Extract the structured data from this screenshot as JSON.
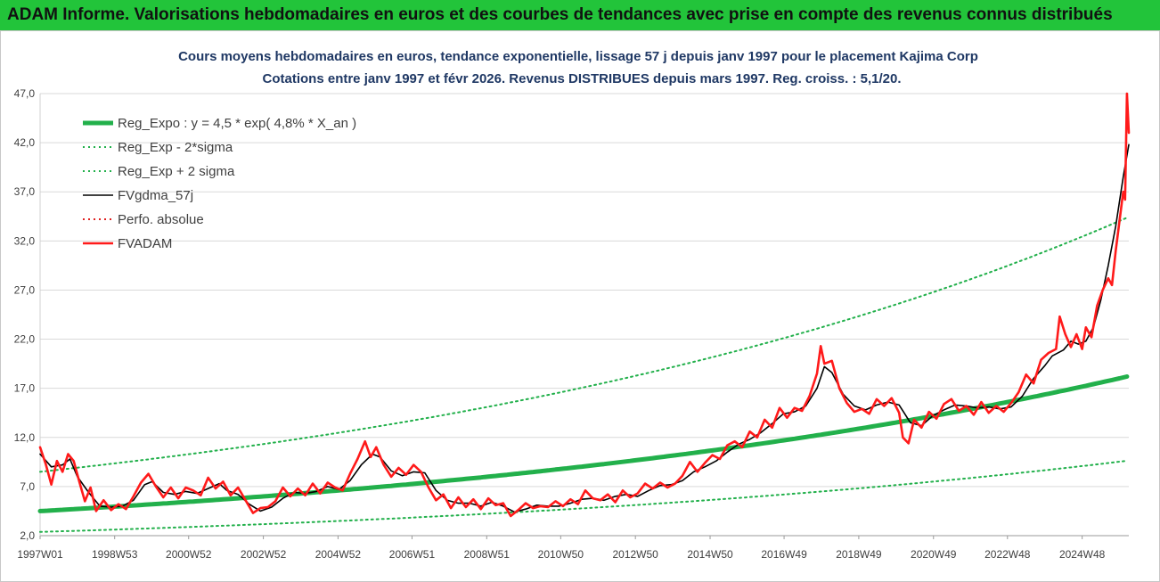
{
  "banner": {
    "title": "ADAM Informe. Valorisations hebdomadaires en euros et des courbes de tendances avec prise en compte des revenus connus distribués",
    "color": "#22c43a"
  },
  "chart_data": {
    "type": "line",
    "title": "Cours moyens hebdomadaires en euros, tendance exponentielle, lissage 57 j depuis janv 1997 pour le placement Kajima Corp",
    "subtitle": "Cotations entre janv 1997 et févr 2026. Revenus DISTRIBUES depuis mars 1997. Reg. croiss. : 5,1/20.",
    "xlabel": "",
    "ylabel": "",
    "ylim": [
      2.0,
      47.0
    ],
    "xlim": [
      1997.0,
      2026.15
    ],
    "grid": true,
    "legend_placement": "top-left",
    "y_ticks": [
      "2,0",
      "7,0",
      "12,0",
      "17,0",
      "22,0",
      "27,0",
      "32,0",
      "37,0",
      "42,0",
      "47,0"
    ],
    "x_ticks": [
      "1997W01",
      "1998W53",
      "2000W52",
      "2002W52",
      "2004W52",
      "2006W51",
      "2008W51",
      "2010W50",
      "2012W50",
      "2014W50",
      "2016W49",
      "2018W49",
      "2020W49",
      "2022W48",
      "2024W48"
    ],
    "series": [
      {
        "name": "Reg_Expo : y = 4,5 * exp( 4,8% *  X_an )",
        "kind": "exp",
        "a": 4.5,
        "rate": 0.048,
        "color": "#22b04b",
        "style": "solid-thick"
      },
      {
        "name": "Reg_Exp - 2*sigma",
        "kind": "exp",
        "a": 2.38,
        "rate": 0.048,
        "color": "#22b04b",
        "style": "dotted"
      },
      {
        "name": "Reg_Exp + 2 sigma",
        "kind": "exp",
        "a": 8.5,
        "rate": 0.048,
        "color": "#22b04b",
        "style": "dotted"
      },
      {
        "name": "FVgdma_57j",
        "kind": "points",
        "color": "#000000",
        "style": "solid",
        "points": [
          [
            1997.0,
            10.3
          ],
          [
            1997.3,
            9.0
          ],
          [
            1997.6,
            9.2
          ],
          [
            1997.8,
            9.8
          ],
          [
            1998.0,
            8.0
          ],
          [
            1998.3,
            6.4
          ],
          [
            1998.6,
            5.0
          ],
          [
            1998.9,
            4.9
          ],
          [
            1999.2,
            5.0
          ],
          [
            1999.5,
            5.6
          ],
          [
            1999.8,
            7.2
          ],
          [
            2000.0,
            7.5
          ],
          [
            2000.3,
            6.4
          ],
          [
            2000.6,
            6.2
          ],
          [
            2000.9,
            6.5
          ],
          [
            2001.2,
            6.3
          ],
          [
            2001.5,
            6.8
          ],
          [
            2001.8,
            7.3
          ],
          [
            2002.0,
            6.6
          ],
          [
            2002.3,
            6.2
          ],
          [
            2002.6,
            5.2
          ],
          [
            2002.9,
            4.5
          ],
          [
            2003.2,
            4.9
          ],
          [
            2003.5,
            5.8
          ],
          [
            2003.8,
            6.4
          ],
          [
            2004.1,
            6.3
          ],
          [
            2004.4,
            6.5
          ],
          [
            2004.7,
            7.0
          ],
          [
            2005.0,
            6.7
          ],
          [
            2005.3,
            7.6
          ],
          [
            2005.6,
            9.2
          ],
          [
            2005.9,
            10.3
          ],
          [
            2006.1,
            10.0
          ],
          [
            2006.4,
            8.6
          ],
          [
            2006.7,
            8.1
          ],
          [
            2007.0,
            8.5
          ],
          [
            2007.3,
            8.4
          ],
          [
            2007.6,
            6.6
          ],
          [
            2007.9,
            5.6
          ],
          [
            2008.2,
            5.3
          ],
          [
            2008.5,
            5.3
          ],
          [
            2008.8,
            5.0
          ],
          [
            2009.1,
            5.4
          ],
          [
            2009.4,
            5.0
          ],
          [
            2009.7,
            4.4
          ],
          [
            2010.0,
            4.7
          ],
          [
            2010.3,
            5.1
          ],
          [
            2010.6,
            5.0
          ],
          [
            2010.9,
            5.0
          ],
          [
            2011.2,
            5.3
          ],
          [
            2011.5,
            5.7
          ],
          [
            2011.8,
            5.8
          ],
          [
            2012.1,
            5.6
          ],
          [
            2012.4,
            6.0
          ],
          [
            2012.7,
            6.2
          ],
          [
            2013.0,
            6.0
          ],
          [
            2013.3,
            6.6
          ],
          [
            2013.6,
            7.1
          ],
          [
            2013.9,
            7.2
          ],
          [
            2014.2,
            7.6
          ],
          [
            2014.5,
            8.5
          ],
          [
            2014.8,
            9.0
          ],
          [
            2015.1,
            9.6
          ],
          [
            2015.4,
            10.5
          ],
          [
            2015.7,
            11.3
          ],
          [
            2016.0,
            11.8
          ],
          [
            2016.3,
            12.5
          ],
          [
            2016.6,
            13.4
          ],
          [
            2016.9,
            14.4
          ],
          [
            2017.2,
            14.6
          ],
          [
            2017.5,
            15.2
          ],
          [
            2017.8,
            17.0
          ],
          [
            2018.0,
            19.2
          ],
          [
            2018.2,
            18.6
          ],
          [
            2018.5,
            16.4
          ],
          [
            2018.8,
            15.2
          ],
          [
            2019.1,
            14.8
          ],
          [
            2019.4,
            15.3
          ],
          [
            2019.7,
            15.6
          ],
          [
            2020.0,
            15.3
          ],
          [
            2020.3,
            13.5
          ],
          [
            2020.6,
            13.2
          ],
          [
            2020.9,
            14.2
          ],
          [
            2021.2,
            14.8
          ],
          [
            2021.5,
            15.3
          ],
          [
            2021.8,
            15.2
          ],
          [
            2022.1,
            15.0
          ],
          [
            2022.4,
            15.1
          ],
          [
            2022.7,
            14.9
          ],
          [
            2023.0,
            15.1
          ],
          [
            2023.3,
            16.2
          ],
          [
            2023.6,
            18.0
          ],
          [
            2023.9,
            19.3
          ],
          [
            2024.1,
            20.3
          ],
          [
            2024.4,
            20.9
          ],
          [
            2024.6,
            21.8
          ],
          [
            2024.8,
            21.5
          ],
          [
            2025.0,
            21.8
          ],
          [
            2025.2,
            23.2
          ],
          [
            2025.4,
            26.0
          ],
          [
            2025.6,
            29.5
          ],
          [
            2025.8,
            33.5
          ],
          [
            2026.0,
            38.5
          ],
          [
            2026.15,
            41.8
          ]
        ]
      },
      {
        "name": "Perfo. absolue",
        "kind": "none",
        "color": "#e02020",
        "style": "dotted"
      },
      {
        "name": "FVADAM",
        "kind": "points",
        "color": "#ff1a1a",
        "style": "solid-thick",
        "points": [
          [
            1997.0,
            11.0
          ],
          [
            1997.15,
            9.3
          ],
          [
            1997.3,
            7.2
          ],
          [
            1997.45,
            9.6
          ],
          [
            1997.6,
            8.5
          ],
          [
            1997.75,
            10.3
          ],
          [
            1997.9,
            9.6
          ],
          [
            1998.05,
            7.5
          ],
          [
            1998.2,
            5.5
          ],
          [
            1998.35,
            6.9
          ],
          [
            1998.5,
            4.5
          ],
          [
            1998.7,
            5.6
          ],
          [
            1998.9,
            4.6
          ],
          [
            1999.1,
            5.2
          ],
          [
            1999.3,
            4.7
          ],
          [
            1999.5,
            6.0
          ],
          [
            1999.7,
            7.4
          ],
          [
            1999.9,
            8.3
          ],
          [
            2000.1,
            7.0
          ],
          [
            2000.3,
            5.9
          ],
          [
            2000.5,
            6.9
          ],
          [
            2000.7,
            5.8
          ],
          [
            2000.9,
            6.9
          ],
          [
            2001.1,
            6.6
          ],
          [
            2001.3,
            6.1
          ],
          [
            2001.5,
            7.9
          ],
          [
            2001.7,
            6.8
          ],
          [
            2001.9,
            7.5
          ],
          [
            2002.1,
            6.1
          ],
          [
            2002.3,
            6.9
          ],
          [
            2002.5,
            5.6
          ],
          [
            2002.7,
            4.3
          ],
          [
            2002.9,
            4.8
          ],
          [
            2003.1,
            4.9
          ],
          [
            2003.3,
            5.5
          ],
          [
            2003.5,
            6.9
          ],
          [
            2003.7,
            6.0
          ],
          [
            2003.9,
            6.8
          ],
          [
            2004.1,
            6.1
          ],
          [
            2004.3,
            7.3
          ],
          [
            2004.5,
            6.3
          ],
          [
            2004.7,
            7.4
          ],
          [
            2004.9,
            6.9
          ],
          [
            2005.1,
            6.6
          ],
          [
            2005.3,
            8.3
          ],
          [
            2005.5,
            9.8
          ],
          [
            2005.7,
            11.6
          ],
          [
            2005.85,
            10.0
          ],
          [
            2006.0,
            11.0
          ],
          [
            2006.2,
            9.2
          ],
          [
            2006.4,
            8.0
          ],
          [
            2006.6,
            8.9
          ],
          [
            2006.8,
            8.2
          ],
          [
            2007.0,
            9.2
          ],
          [
            2007.2,
            8.5
          ],
          [
            2007.4,
            6.9
          ],
          [
            2007.6,
            5.6
          ],
          [
            2007.8,
            6.2
          ],
          [
            2008.0,
            4.8
          ],
          [
            2008.2,
            5.9
          ],
          [
            2008.4,
            4.9
          ],
          [
            2008.6,
            5.7
          ],
          [
            2008.8,
            4.7
          ],
          [
            2009.0,
            5.8
          ],
          [
            2009.2,
            5.1
          ],
          [
            2009.4,
            5.3
          ],
          [
            2009.6,
            4.0
          ],
          [
            2009.8,
            4.6
          ],
          [
            2010.0,
            5.3
          ],
          [
            2010.2,
            4.8
          ],
          [
            2010.4,
            5.0
          ],
          [
            2010.6,
            4.9
          ],
          [
            2010.8,
            5.5
          ],
          [
            2011.0,
            5.0
          ],
          [
            2011.2,
            5.7
          ],
          [
            2011.4,
            5.2
          ],
          [
            2011.6,
            6.6
          ],
          [
            2011.8,
            5.8
          ],
          [
            2012.0,
            5.6
          ],
          [
            2012.2,
            6.2
          ],
          [
            2012.4,
            5.4
          ],
          [
            2012.6,
            6.6
          ],
          [
            2012.8,
            5.9
          ],
          [
            2013.0,
            6.3
          ],
          [
            2013.2,
            7.3
          ],
          [
            2013.4,
            6.8
          ],
          [
            2013.6,
            7.4
          ],
          [
            2013.8,
            6.9
          ],
          [
            2014.0,
            7.3
          ],
          [
            2014.2,
            8.1
          ],
          [
            2014.4,
            9.5
          ],
          [
            2014.6,
            8.5
          ],
          [
            2014.8,
            9.4
          ],
          [
            2015.0,
            10.2
          ],
          [
            2015.2,
            9.8
          ],
          [
            2015.4,
            11.2
          ],
          [
            2015.6,
            11.6
          ],
          [
            2015.8,
            11.0
          ],
          [
            2016.0,
            12.6
          ],
          [
            2016.2,
            12.0
          ],
          [
            2016.4,
            13.8
          ],
          [
            2016.6,
            13.0
          ],
          [
            2016.8,
            15.0
          ],
          [
            2017.0,
            14.0
          ],
          [
            2017.2,
            15.0
          ],
          [
            2017.4,
            14.7
          ],
          [
            2017.6,
            16.2
          ],
          [
            2017.8,
            18.5
          ],
          [
            2017.9,
            21.3
          ],
          [
            2018.0,
            19.5
          ],
          [
            2018.2,
            19.8
          ],
          [
            2018.4,
            17.0
          ],
          [
            2018.6,
            15.5
          ],
          [
            2018.8,
            14.6
          ],
          [
            2019.0,
            14.9
          ],
          [
            2019.2,
            14.4
          ],
          [
            2019.4,
            15.9
          ],
          [
            2019.6,
            15.2
          ],
          [
            2019.8,
            16.0
          ],
          [
            2020.0,
            14.5
          ],
          [
            2020.1,
            12.0
          ],
          [
            2020.25,
            11.4
          ],
          [
            2020.4,
            13.8
          ],
          [
            2020.6,
            13.0
          ],
          [
            2020.8,
            14.6
          ],
          [
            2021.0,
            13.9
          ],
          [
            2021.2,
            15.4
          ],
          [
            2021.4,
            15.9
          ],
          [
            2021.6,
            14.7
          ],
          [
            2021.8,
            15.2
          ],
          [
            2022.0,
            14.3
          ],
          [
            2022.2,
            15.6
          ],
          [
            2022.4,
            14.5
          ],
          [
            2022.6,
            15.2
          ],
          [
            2022.8,
            14.6
          ],
          [
            2023.0,
            15.5
          ],
          [
            2023.2,
            16.6
          ],
          [
            2023.4,
            18.4
          ],
          [
            2023.6,
            17.5
          ],
          [
            2023.8,
            19.9
          ],
          [
            2024.0,
            20.6
          ],
          [
            2024.2,
            21.0
          ],
          [
            2024.3,
            24.3
          ],
          [
            2024.45,
            22.5
          ],
          [
            2024.6,
            21.2
          ],
          [
            2024.75,
            22.5
          ],
          [
            2024.9,
            21.0
          ],
          [
            2025.0,
            23.2
          ],
          [
            2025.15,
            22.2
          ],
          [
            2025.3,
            25.4
          ],
          [
            2025.45,
            27.0
          ],
          [
            2025.6,
            28.2
          ],
          [
            2025.7,
            27.5
          ],
          [
            2025.8,
            31.0
          ],
          [
            2025.9,
            34.0
          ],
          [
            2026.0,
            37.0
          ],
          [
            2026.05,
            36.2
          ],
          [
            2026.1,
            47.0
          ],
          [
            2026.15,
            43.0
          ]
        ]
      }
    ]
  }
}
